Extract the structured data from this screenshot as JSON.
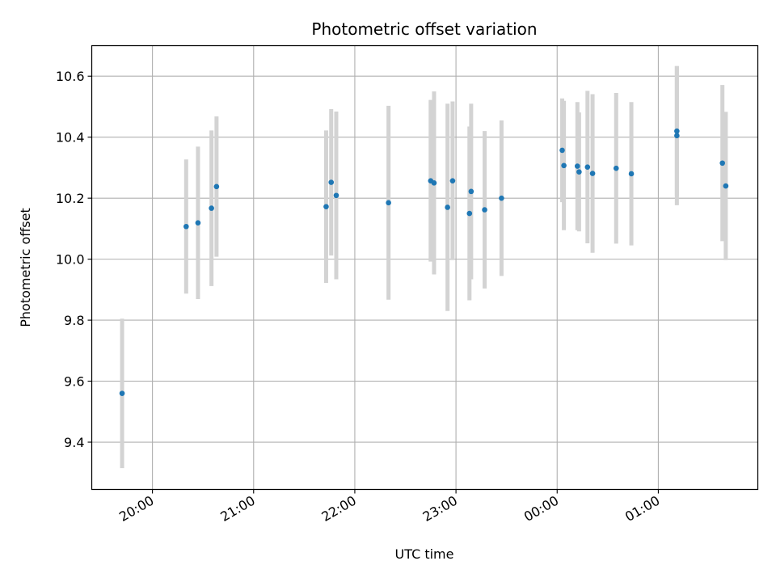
{
  "chart_data": {
    "type": "scatter",
    "title": "Photometric offset variation",
    "xlabel": "UTC time",
    "ylabel": "Photometric offset",
    "xlim": [
      "19:24",
      "01:59"
    ],
    "ylim": [
      9.245,
      10.7
    ],
    "grid": true,
    "legend": "none",
    "x_ticks": [
      "20:00",
      "21:00",
      "22:00",
      "23:00",
      "00:00",
      "01:00"
    ],
    "y_ticks": [
      "9.4",
      "9.6",
      "9.8",
      "10.0",
      "10.2",
      "10.4",
      "10.6"
    ],
    "colors": {
      "point": "#1f77b4",
      "errorbar": "#d3d3d3",
      "grid": "#b0b0b0"
    },
    "series": [
      {
        "points": [
          {
            "x": "19:42",
            "y": 9.56,
            "err": 0.245
          },
          {
            "x": "20:20",
            "y": 10.107,
            "err": 0.22
          },
          {
            "x": "20:27",
            "y": 10.119,
            "err": 0.25
          },
          {
            "x": "20:35",
            "y": 10.167,
            "err": 0.255
          },
          {
            "x": "20:38",
            "y": 10.238,
            "err": 0.23
          },
          {
            "x": "21:43",
            "y": 10.172,
            "err": 0.25
          },
          {
            "x": "21:46",
            "y": 10.252,
            "err": 0.24
          },
          {
            "x": "21:49",
            "y": 10.209,
            "err": 0.275
          },
          {
            "x": "22:20",
            "y": 10.185,
            "err": 0.318
          },
          {
            "x": "22:45",
            "y": 10.257,
            "err": 0.265
          },
          {
            "x": "22:47",
            "y": 10.25,
            "err": 0.3
          },
          {
            "x": "22:55",
            "y": 10.17,
            "err": 0.34
          },
          {
            "x": "22:58",
            "y": 10.257,
            "err": 0.26
          },
          {
            "x": "23:08",
            "y": 10.15,
            "err": 0.285
          },
          {
            "x": "23:09",
            "y": 10.222,
            "err": 0.288
          },
          {
            "x": "23:17",
            "y": 10.162,
            "err": 0.258
          },
          {
            "x": "23:27",
            "y": 10.2,
            "err": 0.255
          },
          {
            "x": "00:03",
            "y": 10.357,
            "err": 0.17
          },
          {
            "x": "00:04",
            "y": 10.307,
            "err": 0.212
          },
          {
            "x": "00:12",
            "y": 10.305,
            "err": 0.21
          },
          {
            "x": "00:13",
            "y": 10.286,
            "err": 0.195
          },
          {
            "x": "00:18",
            "y": 10.302,
            "err": 0.25
          },
          {
            "x": "00:21",
            "y": 10.281,
            "err": 0.26
          },
          {
            "x": "00:35",
            "y": 10.298,
            "err": 0.247
          },
          {
            "x": "00:44",
            "y": 10.28,
            "err": 0.235
          },
          {
            "x": "01:11",
            "y": 10.42,
            "err": 0.213
          },
          {
            "x": "01:11",
            "y": 10.405,
            "err": 0.228
          },
          {
            "x": "01:38",
            "y": 10.315,
            "err": 0.256
          },
          {
            "x": "01:40",
            "y": 10.24,
            "err": 0.243
          }
        ]
      }
    ]
  }
}
